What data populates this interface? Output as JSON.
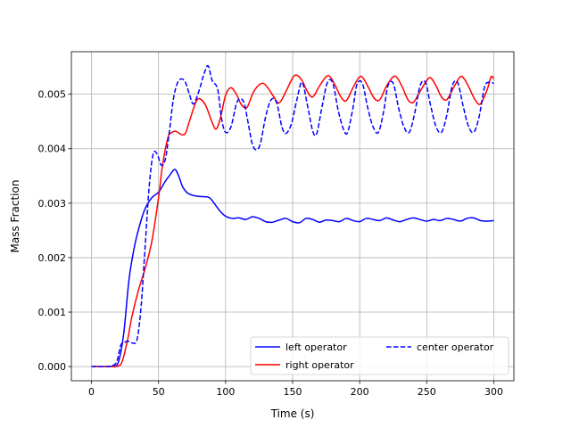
{
  "chart_data": {
    "type": "line",
    "title": "",
    "xlabel": "Time (s)",
    "ylabel": "Mass Fraction",
    "xlim": [
      -15,
      315
    ],
    "ylim": [
      -0.00026,
      0.00578
    ],
    "xticks": [
      0,
      50,
      100,
      150,
      200,
      250,
      300
    ],
    "xtick_labels": [
      "0",
      "50",
      "100",
      "150",
      "200",
      "250",
      "300"
    ],
    "yticks": [
      0,
      0.001,
      0.002,
      0.003,
      0.004,
      0.005
    ],
    "ytick_labels": [
      "0.000",
      "0.001",
      "0.002",
      "0.003",
      "0.004",
      "0.005"
    ],
    "grid": true,
    "legend_position": "lower-right",
    "legend_columns": 2,
    "series": [
      {
        "name": "left operator",
        "color": "#0000ff",
        "dash": "solid",
        "points": [
          [
            0,
            0
          ],
          [
            10,
            0
          ],
          [
            16,
            1e-05
          ],
          [
            20,
            8e-05
          ],
          [
            24,
            0.0006
          ],
          [
            28,
            0.0016
          ],
          [
            32,
            0.0022
          ],
          [
            36,
            0.0026
          ],
          [
            40,
            0.0029
          ],
          [
            45,
            0.0031
          ],
          [
            50,
            0.0032
          ],
          [
            55,
            0.0034
          ],
          [
            58,
            0.0035
          ],
          [
            62,
            0.00362
          ],
          [
            65,
            0.0035
          ],
          [
            68,
            0.0033
          ],
          [
            72,
            0.00318
          ],
          [
            78,
            0.00313
          ],
          [
            83,
            0.00312
          ],
          [
            88,
            0.0031
          ],
          [
            92,
            0.00298
          ],
          [
            96,
            0.00285
          ],
          [
            100,
            0.00276
          ],
          [
            105,
            0.00272
          ],
          [
            110,
            0.00273
          ],
          [
            115,
            0.0027
          ],
          [
            120,
            0.00275
          ],
          [
            125,
            0.00272
          ],
          [
            130,
            0.00266
          ],
          [
            135,
            0.00265
          ],
          [
            140,
            0.00269
          ],
          [
            145,
            0.00272
          ],
          [
            150,
            0.00266
          ],
          [
            155,
            0.00264
          ],
          [
            160,
            0.00272
          ],
          [
            165,
            0.0027
          ],
          [
            170,
            0.00265
          ],
          [
            175,
            0.00269
          ],
          [
            180,
            0.00268
          ],
          [
            185,
            0.00266
          ],
          [
            190,
            0.00272
          ],
          [
            195,
            0.00268
          ],
          [
            200,
            0.00266
          ],
          [
            205,
            0.00272
          ],
          [
            210,
            0.0027
          ],
          [
            215,
            0.00268
          ],
          [
            220,
            0.00273
          ],
          [
            225,
            0.00269
          ],
          [
            230,
            0.00266
          ],
          [
            235,
            0.0027
          ],
          [
            240,
            0.00273
          ],
          [
            245,
            0.0027
          ],
          [
            250,
            0.00267
          ],
          [
            255,
            0.0027
          ],
          [
            260,
            0.00268
          ],
          [
            265,
            0.00272
          ],
          [
            270,
            0.0027
          ],
          [
            275,
            0.00267
          ],
          [
            280,
            0.00272
          ],
          [
            285,
            0.00273
          ],
          [
            290,
            0.00268
          ],
          [
            295,
            0.00267
          ],
          [
            300,
            0.00268
          ]
        ]
      },
      {
        "name": "right operator",
        "color": "#ff0000",
        "dash": "solid",
        "points": [
          [
            0,
            0
          ],
          [
            15,
            0
          ],
          [
            20,
            1e-05
          ],
          [
            23,
            0.0001
          ],
          [
            27,
            0.0005
          ],
          [
            30,
            0.0009
          ],
          [
            35,
            0.0014
          ],
          [
            40,
            0.0018
          ],
          [
            45,
            0.0023
          ],
          [
            50,
            0.0031
          ],
          [
            53,
            0.0037
          ],
          [
            57,
            0.0042
          ],
          [
            60,
            0.0043
          ],
          [
            63,
            0.00432
          ],
          [
            67,
            0.00426
          ],
          [
            70,
            0.00428
          ],
          [
            73,
            0.0045
          ],
          [
            77,
            0.0048
          ],
          [
            80,
            0.00492
          ],
          [
            85,
            0.0048
          ],
          [
            90,
            0.00448
          ],
          [
            93,
            0.00436
          ],
          [
            96,
            0.00455
          ],
          [
            100,
            0.00498
          ],
          [
            104,
            0.00512
          ],
          [
            108,
            0.005
          ],
          [
            112,
            0.0048
          ],
          [
            116,
            0.00476
          ],
          [
            120,
            0.005
          ],
          [
            124,
            0.00515
          ],
          [
            128,
            0.0052
          ],
          [
            132,
            0.0051
          ],
          [
            136,
            0.00495
          ],
          [
            140,
            0.00484
          ],
          [
            145,
            0.00505
          ],
          [
            150,
            0.0053
          ],
          [
            153,
            0.00535
          ],
          [
            157,
            0.00525
          ],
          [
            161,
            0.00505
          ],
          [
            165,
            0.00495
          ],
          [
            170,
            0.00515
          ],
          [
            175,
            0.00532
          ],
          [
            178,
            0.00532
          ],
          [
            182,
            0.00515
          ],
          [
            186,
            0.00495
          ],
          [
            190,
            0.00488
          ],
          [
            195,
            0.00512
          ],
          [
            200,
            0.00532
          ],
          [
            203,
            0.00528
          ],
          [
            207,
            0.0051
          ],
          [
            211,
            0.00492
          ],
          [
            215,
            0.0049
          ],
          [
            220,
            0.00515
          ],
          [
            225,
            0.00532
          ],
          [
            228,
            0.0053
          ],
          [
            232,
            0.00512
          ],
          [
            236,
            0.0049
          ],
          [
            240,
            0.00485
          ],
          [
            245,
            0.00505
          ],
          [
            250,
            0.00525
          ],
          [
            253,
            0.0053
          ],
          [
            257,
            0.00515
          ],
          [
            261,
            0.00495
          ],
          [
            265,
            0.0049
          ],
          [
            270,
            0.00512
          ],
          [
            275,
            0.00532
          ],
          [
            278,
            0.00528
          ],
          [
            282,
            0.0051
          ],
          [
            286,
            0.0049
          ],
          [
            290,
            0.00482
          ],
          [
            295,
            0.00508
          ],
          [
            298,
            0.00532
          ],
          [
            300,
            0.00528
          ]
        ]
      },
      {
        "name": "center operator",
        "color": "#0000ff",
        "dash": "dashed",
        "points": [
          [
            0,
            0
          ],
          [
            12,
            0
          ],
          [
            16,
            2e-05
          ],
          [
            19,
            0.0001
          ],
          [
            22,
            0.0004
          ],
          [
            25,
            0.00045
          ],
          [
            28,
            0.00046
          ],
          [
            31,
            0.00043
          ],
          [
            34,
            0.0005
          ],
          [
            37,
            0.0011
          ],
          [
            40,
            0.0022
          ],
          [
            43,
            0.0033
          ],
          [
            46,
            0.0039
          ],
          [
            49,
            0.0039
          ],
          [
            52,
            0.0037
          ],
          [
            55,
            0.0038
          ],
          [
            58,
            0.0043
          ],
          [
            61,
            0.0049
          ],
          [
            64,
            0.0052
          ],
          [
            67,
            0.00528
          ],
          [
            70,
            0.00522
          ],
          [
            73,
            0.005
          ],
          [
            76,
            0.00482
          ],
          [
            80,
            0.00505
          ],
          [
            84,
            0.00538
          ],
          [
            87,
            0.00552
          ],
          [
            90,
            0.00525
          ],
          [
            94,
            0.0051
          ],
          [
            97,
            0.00455
          ],
          [
            100,
            0.0043
          ],
          [
            104,
            0.0044
          ],
          [
            108,
            0.00482
          ],
          [
            111,
            0.00492
          ],
          [
            114,
            0.00482
          ],
          [
            117,
            0.00445
          ],
          [
            120,
            0.00408
          ],
          [
            123,
            0.00398
          ],
          [
            126,
            0.0041
          ],
          [
            130,
            0.0046
          ],
          [
            134,
            0.0049
          ],
          [
            138,
            0.00485
          ],
          [
            142,
            0.0044
          ],
          [
            145,
            0.00428
          ],
          [
            149,
            0.00445
          ],
          [
            153,
            0.00488
          ],
          [
            157,
            0.00522
          ],
          [
            161,
            0.0048
          ],
          [
            165,
            0.00432
          ],
          [
            168,
            0.00428
          ],
          [
            172,
            0.00478
          ],
          [
            176,
            0.00522
          ],
          [
            180,
            0.0052
          ],
          [
            184,
            0.0047
          ],
          [
            188,
            0.00435
          ],
          [
            191,
            0.0043
          ],
          [
            195,
            0.00475
          ],
          [
            198,
            0.00518
          ],
          [
            202,
            0.0052
          ],
          [
            206,
            0.00475
          ],
          [
            210,
            0.0044
          ],
          [
            214,
            0.0043
          ],
          [
            218,
            0.0047
          ],
          [
            221,
            0.00515
          ],
          [
            225,
            0.0052
          ],
          [
            229,
            0.00475
          ],
          [
            233,
            0.0044
          ],
          [
            237,
            0.0043
          ],
          [
            241,
            0.00465
          ],
          [
            245,
            0.00515
          ],
          [
            249,
            0.00522
          ],
          [
            253,
            0.00478
          ],
          [
            257,
            0.0044
          ],
          [
            261,
            0.0043
          ],
          [
            265,
            0.00462
          ],
          [
            269,
            0.00515
          ],
          [
            273,
            0.00522
          ],
          [
            277,
            0.0048
          ],
          [
            281,
            0.00442
          ],
          [
            285,
            0.0043
          ],
          [
            289,
            0.00458
          ],
          [
            293,
            0.00512
          ],
          [
            296,
            0.00522
          ],
          [
            300,
            0.0052
          ]
        ]
      }
    ]
  }
}
